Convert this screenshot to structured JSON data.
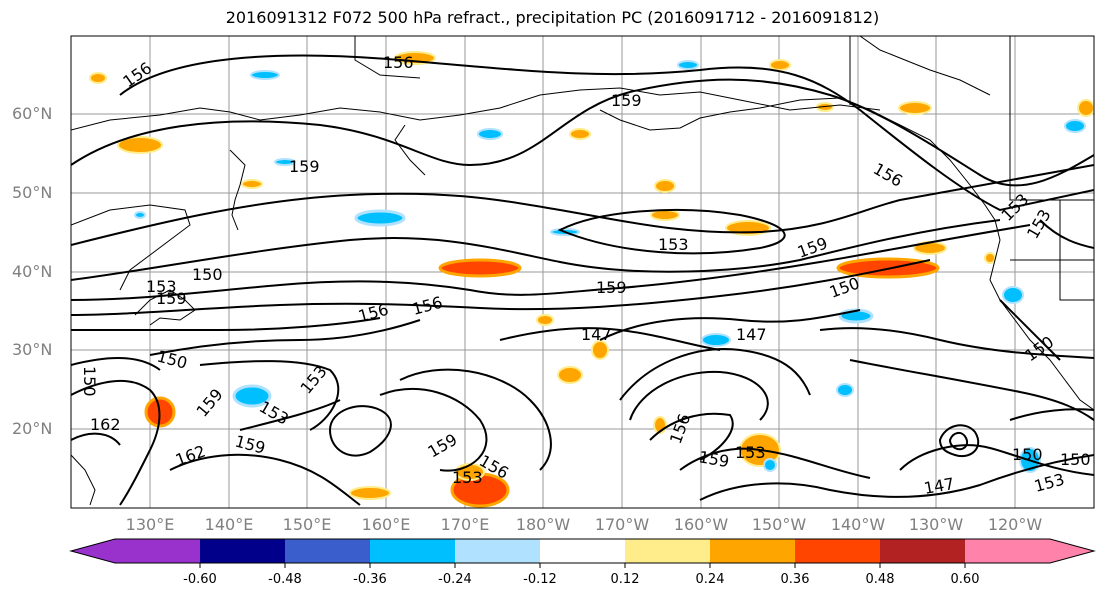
{
  "title": "2016091312 F072 500 hPa refract., precipitation PC (2016091712 - 2016091812)",
  "lat_labels": [
    "60°N",
    "50°N",
    "40°N",
    "30°N",
    "20°N"
  ],
  "lon_labels": [
    "130°E",
    "140°E",
    "150°E",
    "160°E",
    "170°E",
    "180°W",
    "170°W",
    "160°W",
    "150°W",
    "140°W",
    "130°W",
    "120°W"
  ],
  "contour_labels": [
    "156",
    "156",
    "159",
    "159",
    "156",
    "153",
    "153",
    "159",
    "159",
    "150",
    "150",
    "153",
    "159",
    "150",
    "156",
    "156",
    "147",
    "147",
    "150",
    "153",
    "150",
    "153",
    "153",
    "159",
    "162",
    "159",
    "162",
    "159",
    "156",
    "153",
    "156",
    "159",
    "153",
    "147",
    "150",
    "153",
    "150"
  ],
  "colorbar": {
    "ticks": [
      "-0.60",
      "-0.48",
      "-0.36",
      "-0.24",
      "-0.12",
      "0.12",
      "0.24",
      "0.36",
      "0.48",
      "0.60"
    ],
    "colors": [
      "#9932cc",
      "#00008b",
      "#3a5fcd",
      "#00bfff",
      "#b0e2ff",
      "#ffffff",
      "#ffec8b",
      "#ffa500",
      "#ff4500",
      "#b22222",
      "#ff82ab"
    ]
  }
}
